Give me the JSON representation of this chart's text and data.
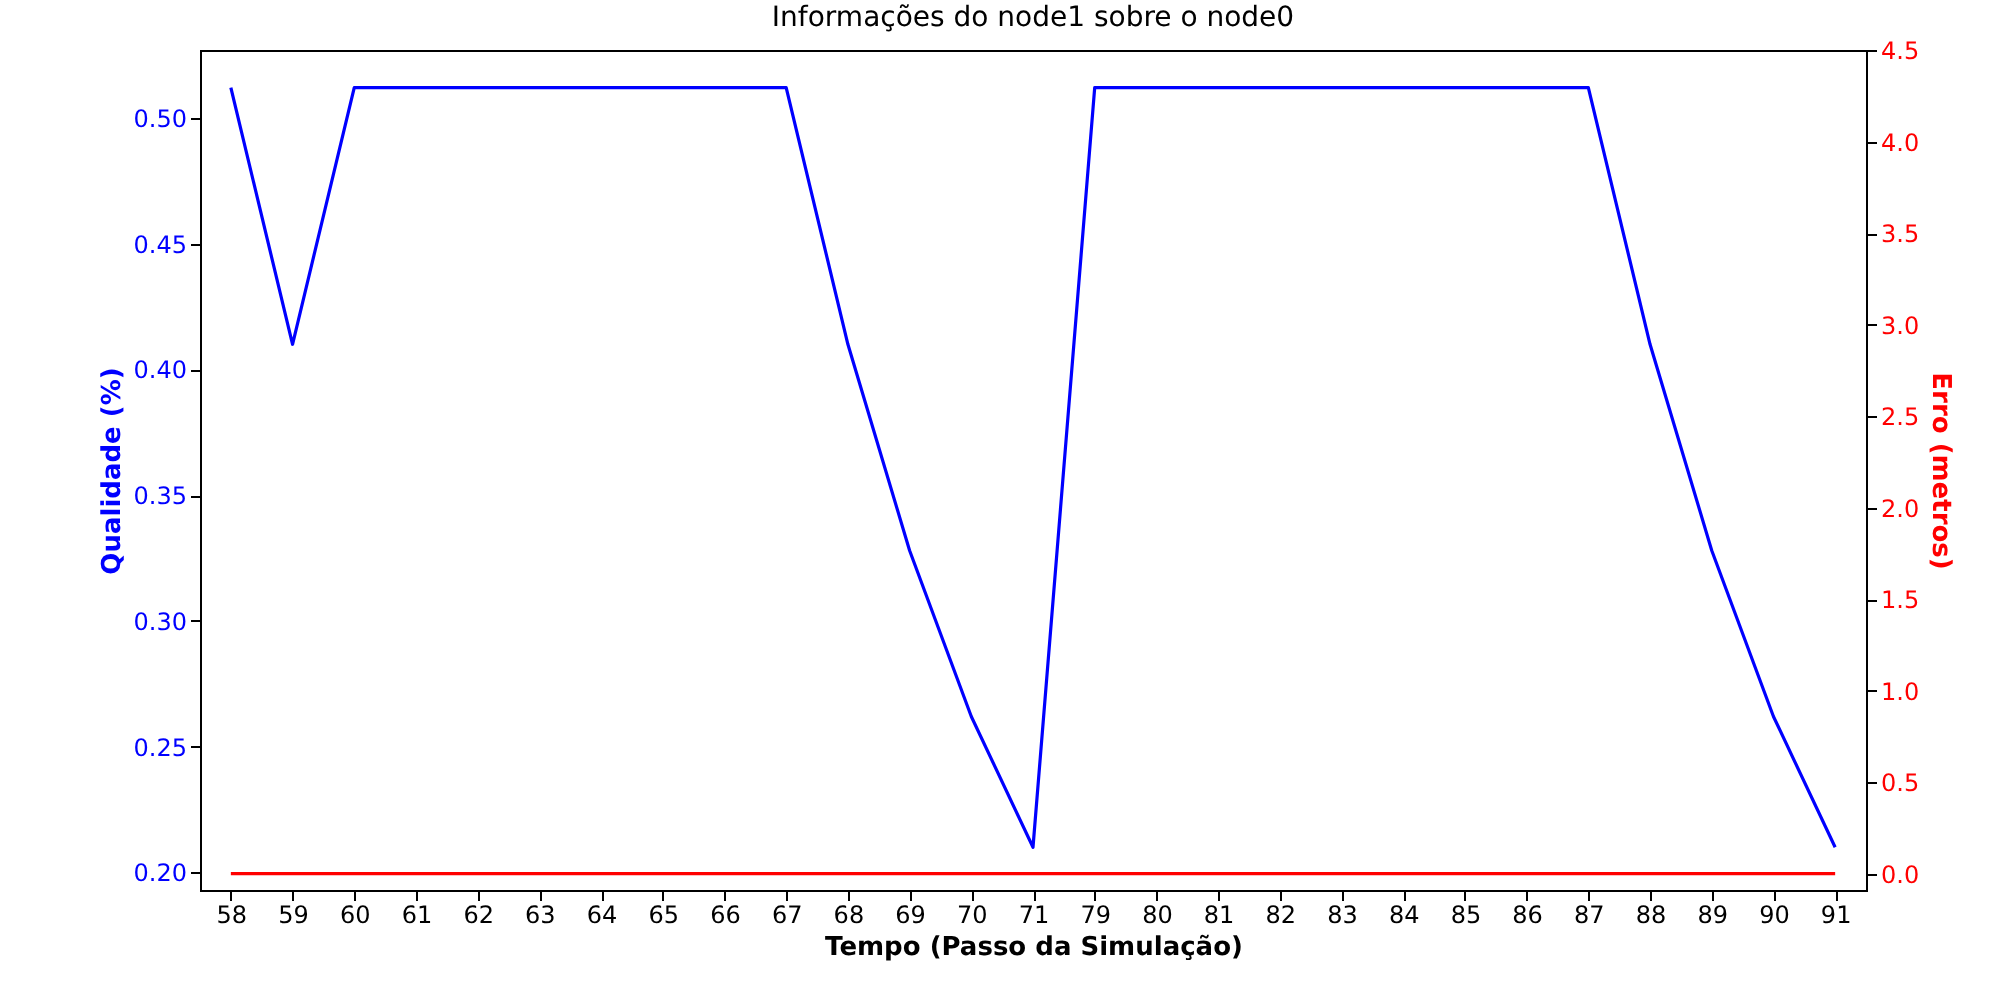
{
  "chart_data": {
    "type": "line",
    "title": "Informações do node1 sobre o node0",
    "xlabel": "Tempo (Passo da Simulação)",
    "ylabel": "Qualidade (%)",
    "y2label": "Erro (metros)",
    "categories": [
      "58",
      "59",
      "60",
      "61",
      "62",
      "63",
      "64",
      "65",
      "66",
      "67",
      "68",
      "69",
      "70",
      "71",
      "79",
      "80",
      "81",
      "82",
      "83",
      "84",
      "85",
      "86",
      "87",
      "88",
      "89",
      "90",
      "91"
    ],
    "series": [
      {
        "color": "#0000ff",
        "values": [
          0.512,
          0.41,
          0.512,
          0.512,
          0.512,
          0.512,
          0.512,
          0.512,
          0.512,
          0.512,
          0.41,
          0.328,
          0.262,
          0.21,
          0.512,
          0.512,
          0.512,
          0.512,
          0.512,
          0.512,
          0.512,
          0.512,
          0.512,
          0.41,
          0.328,
          0.262,
          0.21
        ]
      },
      {
        "color": "#ff0000",
        "axis": "y2",
        "values": [
          0,
          0,
          0,
          0,
          0,
          0,
          0,
          0,
          0,
          0,
          0,
          0,
          0,
          0,
          0,
          0,
          0,
          0,
          0,
          0,
          0,
          0,
          0,
          0,
          0,
          0,
          0
        ]
      }
    ],
    "ylim": [
      0.193,
      0.527
    ],
    "yticks": [
      {
        "value": 0.2,
        "label": "0.20"
      },
      0.25,
      {
        "value": 0.3,
        "label": "0.30"
      },
      0.35,
      {
        "value": 0.4,
        "label": "0.40"
      },
      0.45,
      {
        "value": 0.5,
        "label": "0.50"
      }
    ],
    "y2lim": [
      -0.09,
      4.5
    ],
    "y2ticks": [
      {
        "value": 0,
        "label": "0.0"
      },
      0.5,
      {
        "value": 1,
        "label": "1.0"
      },
      1.5,
      {
        "value": 2,
        "label": "2.0"
      },
      2.5,
      {
        "value": 3,
        "label": "3.0"
      },
      3.5,
      {
        "value": 4,
        "label": "4.0"
      },
      4.5
    ],
    "grid": false
  }
}
